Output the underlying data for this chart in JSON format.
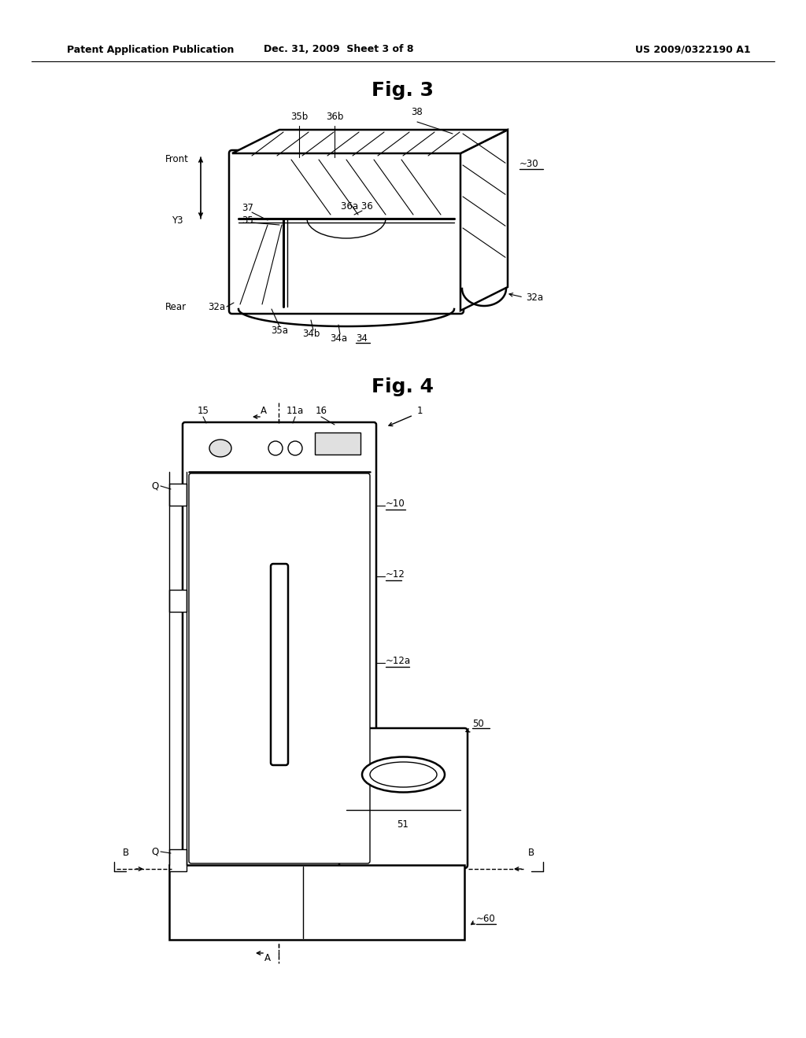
{
  "bg_color": "#ffffff",
  "header_left": "Patent Application Publication",
  "header_mid": "Dec. 31, 2009  Sheet 3 of 8",
  "header_right": "US 2009/0322190 A1",
  "fig3_title": "Fig. 3",
  "fig4_title": "Fig. 4"
}
